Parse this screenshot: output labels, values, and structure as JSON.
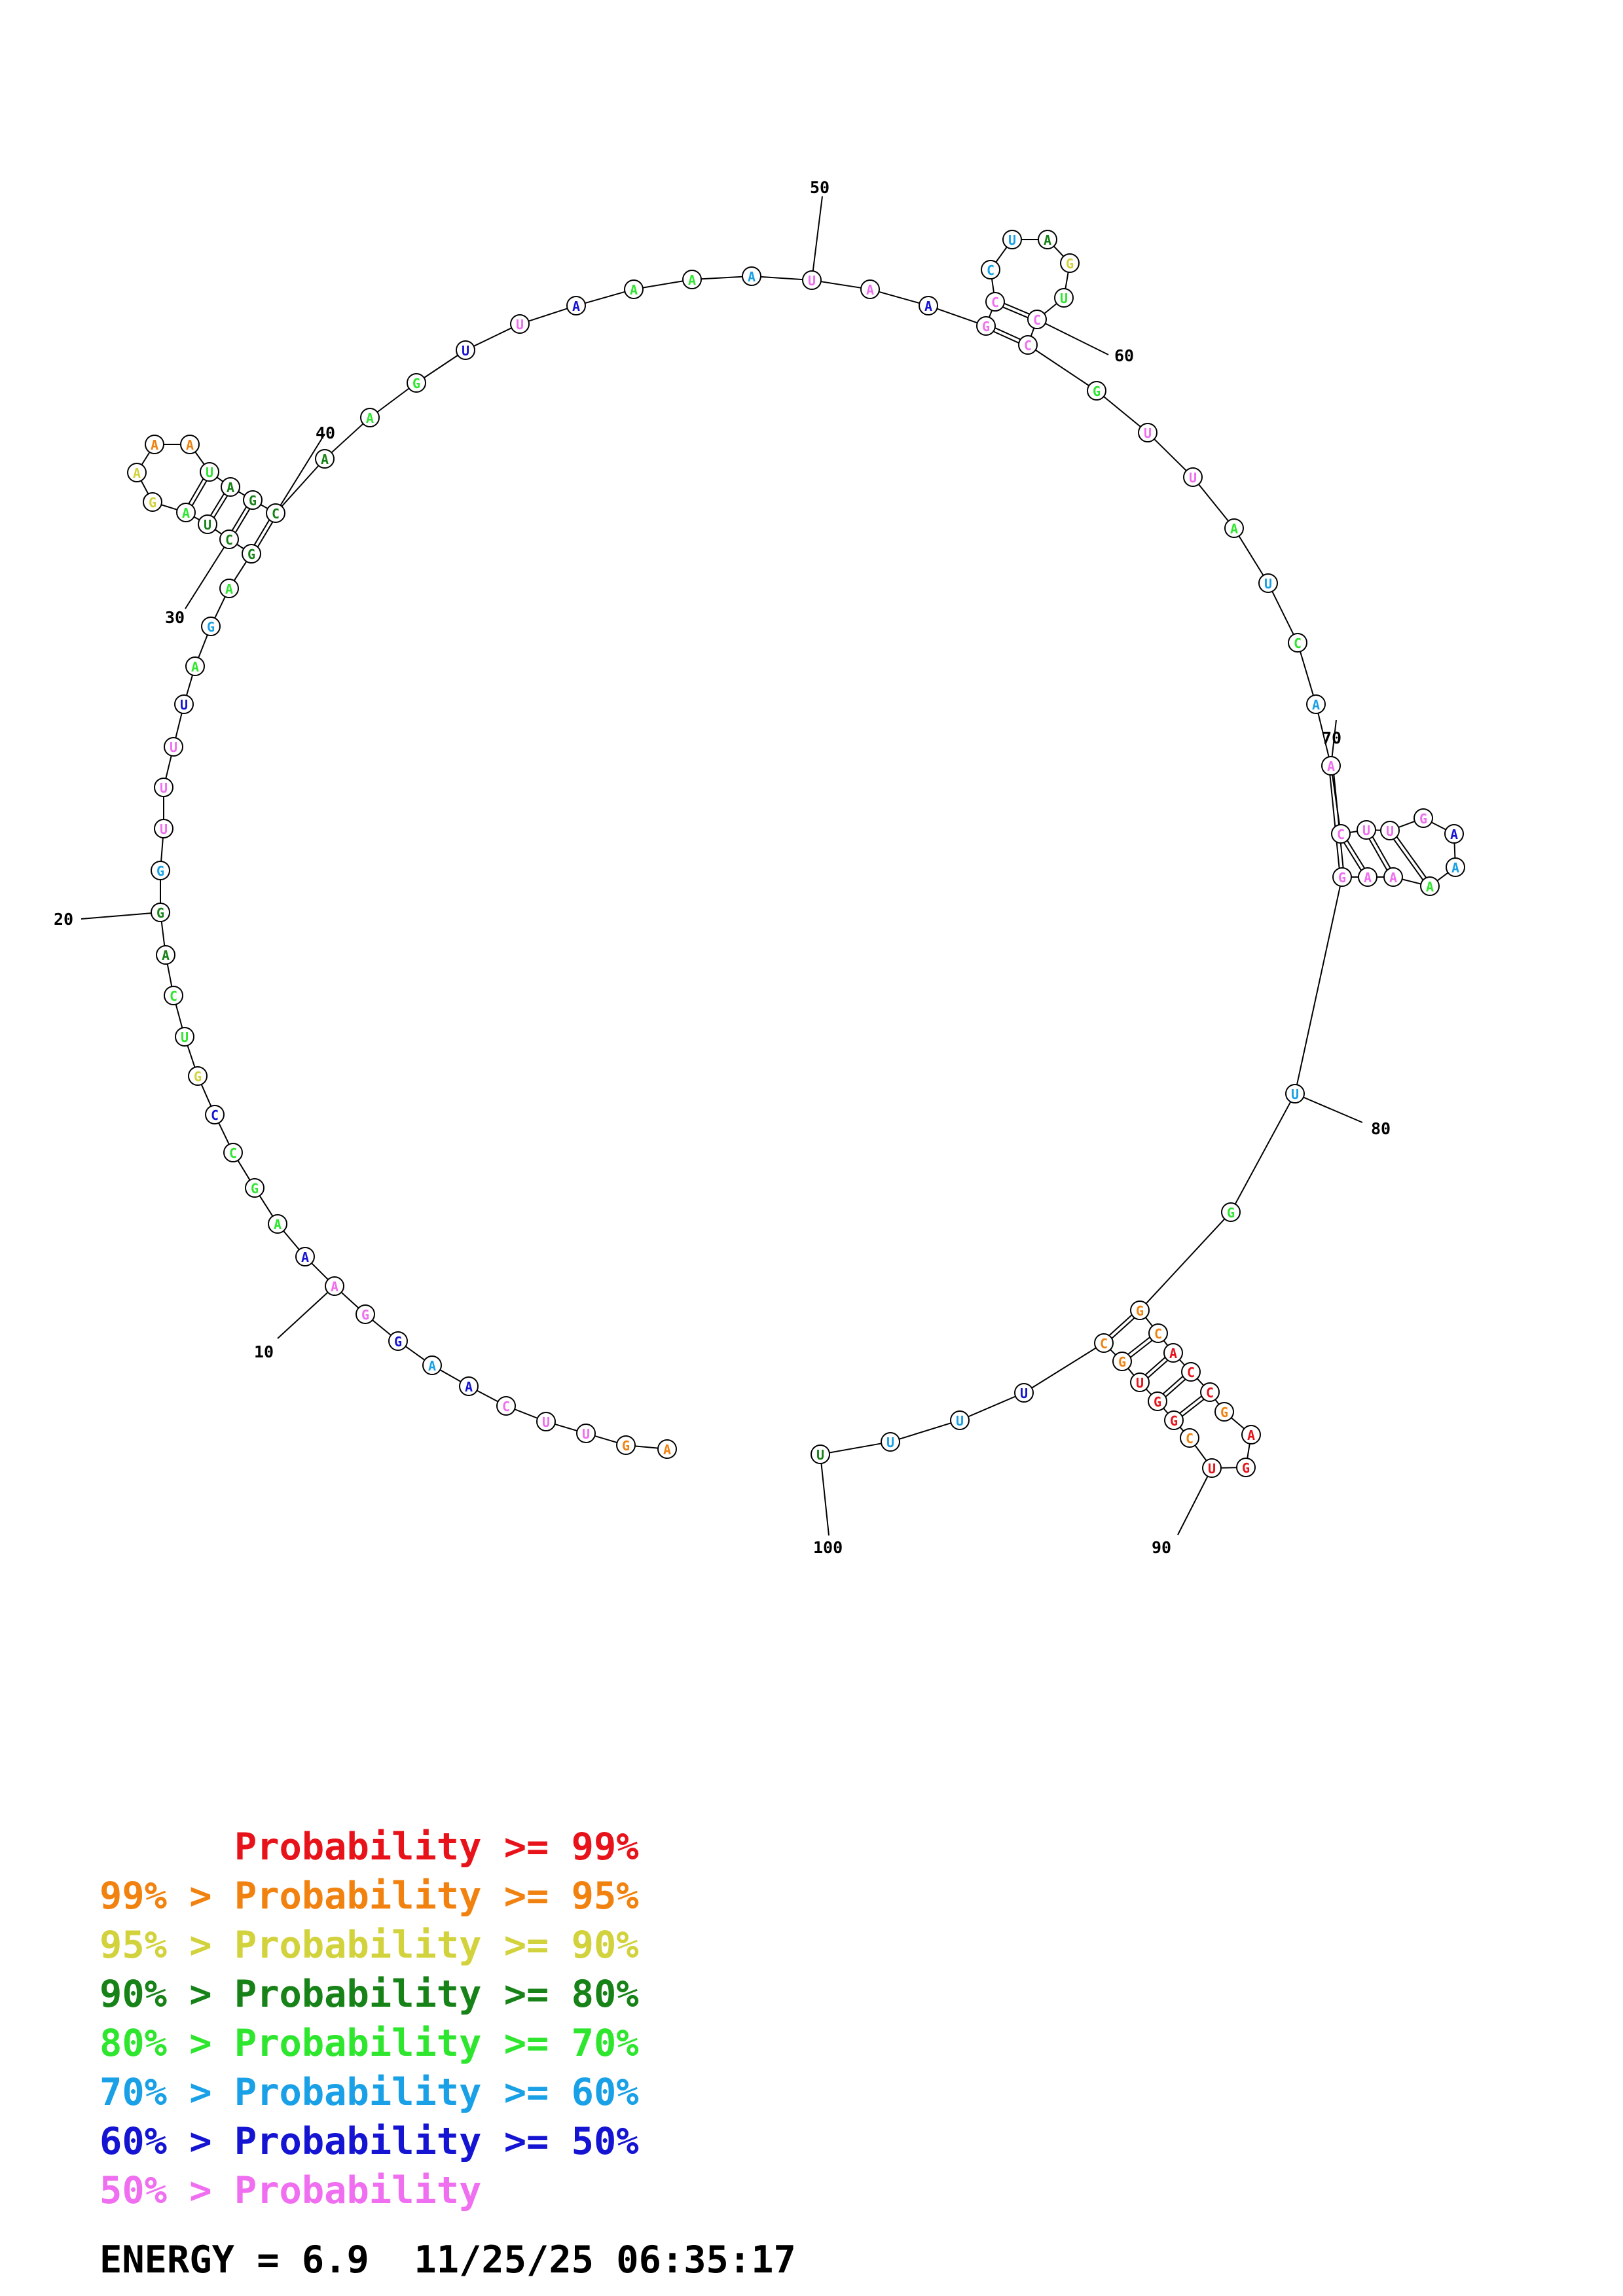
{
  "colors": {
    "red": "#e8131a",
    "orange": "#f2820f",
    "yellow": "#d2d23c",
    "darkgreen": "#178217",
    "green": "#2ee62e",
    "cyan": "#19a0e6",
    "blue": "#1414d2",
    "pink": "#f06ef0"
  },
  "sequence": [
    {
      "n": 1,
      "b": "A",
      "c": "orange"
    },
    {
      "n": 2,
      "b": "G",
      "c": "orange"
    },
    {
      "n": 3,
      "b": "U",
      "c": "pink"
    },
    {
      "n": 4,
      "b": "U",
      "c": "pink"
    },
    {
      "n": 5,
      "b": "C",
      "c": "pink"
    },
    {
      "n": 6,
      "b": "A",
      "c": "blue"
    },
    {
      "n": 7,
      "b": "A",
      "c": "cyan"
    },
    {
      "n": 8,
      "b": "G",
      "c": "blue"
    },
    {
      "n": 9,
      "b": "G",
      "c": "pink"
    },
    {
      "n": 10,
      "b": "A",
      "c": "pink"
    },
    {
      "n": 11,
      "b": "A",
      "c": "blue"
    },
    {
      "n": 12,
      "b": "A",
      "c": "green"
    },
    {
      "n": 13,
      "b": "G",
      "c": "green"
    },
    {
      "n": 14,
      "b": "C",
      "c": "green"
    },
    {
      "n": 15,
      "b": "C",
      "c": "blue"
    },
    {
      "n": 16,
      "b": "G",
      "c": "yellow"
    },
    {
      "n": 17,
      "b": "U",
      "c": "green"
    },
    {
      "n": 18,
      "b": "C",
      "c": "green"
    },
    {
      "n": 19,
      "b": "A",
      "c": "darkgreen"
    },
    {
      "n": 20,
      "b": "G",
      "c": "darkgreen"
    },
    {
      "n": 21,
      "b": "G",
      "c": "cyan"
    },
    {
      "n": 22,
      "b": "U",
      "c": "pink"
    },
    {
      "n": 23,
      "b": "U",
      "c": "pink"
    },
    {
      "n": 24,
      "b": "U",
      "c": "pink"
    },
    {
      "n": 25,
      "b": "U",
      "c": "blue"
    },
    {
      "n": 26,
      "b": "A",
      "c": "green"
    },
    {
      "n": 27,
      "b": "G",
      "c": "cyan"
    },
    {
      "n": 28,
      "b": "A",
      "c": "green"
    },
    {
      "n": 29,
      "b": "G",
      "c": "darkgreen"
    },
    {
      "n": 30,
      "b": "C",
      "c": "darkgreen"
    },
    {
      "n": 31,
      "b": "U",
      "c": "darkgreen"
    },
    {
      "n": 32,
      "b": "A",
      "c": "green"
    },
    {
      "n": 33,
      "b": "G",
      "c": "yellow"
    },
    {
      "n": 34,
      "b": "A",
      "c": "yellow"
    },
    {
      "n": 35,
      "b": "A",
      "c": "orange"
    },
    {
      "n": 36,
      "b": "A",
      "c": "orange"
    },
    {
      "n": 37,
      "b": "U",
      "c": "green"
    },
    {
      "n": 38,
      "b": "A",
      "c": "darkgreen"
    },
    {
      "n": 39,
      "b": "G",
      "c": "darkgreen"
    },
    {
      "n": 40,
      "b": "C",
      "c": "darkgreen"
    },
    {
      "n": 41,
      "b": "A",
      "c": "darkgreen"
    },
    {
      "n": 42,
      "b": "A",
      "c": "green"
    },
    {
      "n": 43,
      "b": "G",
      "c": "green"
    },
    {
      "n": 44,
      "b": "U",
      "c": "blue"
    },
    {
      "n": 45,
      "b": "U",
      "c": "pink"
    },
    {
      "n": 46,
      "b": "A",
      "c": "blue"
    },
    {
      "n": 47,
      "b": "A",
      "c": "green"
    },
    {
      "n": 48,
      "b": "A",
      "c": "green"
    },
    {
      "n": 49,
      "b": "A",
      "c": "cyan"
    },
    {
      "n": 50,
      "b": "U",
      "c": "pink"
    },
    {
      "n": 51,
      "b": "A",
      "c": "pink"
    },
    {
      "n": 52,
      "b": "A",
      "c": "blue"
    },
    {
      "n": 53,
      "b": "G",
      "c": "pink"
    },
    {
      "n": 54,
      "b": "C",
      "c": "pink"
    },
    {
      "n": 55,
      "b": "C",
      "c": "cyan"
    },
    {
      "n": 56,
      "b": "U",
      "c": "cyan"
    },
    {
      "n": 57,
      "b": "A",
      "c": "darkgreen"
    },
    {
      "n": 58,
      "b": "G",
      "c": "yellow"
    },
    {
      "n": 59,
      "b": "U",
      "c": "green"
    },
    {
      "n": 60,
      "b": "C",
      "c": "pink"
    },
    {
      "n": 61,
      "b": "C",
      "c": "pink"
    },
    {
      "n": 62,
      "b": "G",
      "c": "green"
    },
    {
      "n": 63,
      "b": "U",
      "c": "pink"
    },
    {
      "n": 64,
      "b": "U",
      "c": "pink"
    },
    {
      "n": 65,
      "b": "A",
      "c": "green"
    },
    {
      "n": 66,
      "b": "U",
      "c": "cyan"
    },
    {
      "n": 67,
      "b": "C",
      "c": "green"
    },
    {
      "n": 68,
      "b": "A",
      "c": "cyan"
    },
    {
      "n": 69,
      "b": "A",
      "c": "pink"
    },
    {
      "n": 70,
      "b": "C",
      "c": "pink"
    },
    {
      "n": 71,
      "b": "U",
      "c": "pink"
    },
    {
      "n": 72,
      "b": "U",
      "c": "pink"
    },
    {
      "n": 73,
      "b": "G",
      "c": "pink"
    },
    {
      "n": 74,
      "b": "A",
      "c": "blue"
    },
    {
      "n": 75,
      "b": "A",
      "c": "cyan"
    },
    {
      "n": 76,
      "b": "A",
      "c": "green"
    },
    {
      "n": 77,
      "b": "A",
      "c": "pink"
    },
    {
      "n": 78,
      "b": "A",
      "c": "pink"
    },
    {
      "n": 79,
      "b": "G",
      "c": "pink"
    },
    {
      "n": 80,
      "b": "U",
      "c": "cyan"
    },
    {
      "n": 81,
      "b": "G",
      "c": "green"
    },
    {
      "n": 82,
      "b": "G",
      "c": "orange"
    },
    {
      "n": 83,
      "b": "C",
      "c": "orange"
    },
    {
      "n": 84,
      "b": "A",
      "c": "red"
    },
    {
      "n": 85,
      "b": "C",
      "c": "red"
    },
    {
      "n": 86,
      "b": "C",
      "c": "red"
    },
    {
      "n": 87,
      "b": "G",
      "c": "orange"
    },
    {
      "n": 88,
      "b": "A",
      "c": "red"
    },
    {
      "n": 89,
      "b": "G",
      "c": "red"
    },
    {
      "n": 90,
      "b": "U",
      "c": "red"
    },
    {
      "n": 91,
      "b": "C",
      "c": "orange"
    },
    {
      "n": 92,
      "b": "G",
      "c": "red"
    },
    {
      "n": 93,
      "b": "G",
      "c": "red"
    },
    {
      "n": 94,
      "b": "U",
      "c": "red"
    },
    {
      "n": 95,
      "b": "G",
      "c": "orange"
    },
    {
      "n": 96,
      "b": "C",
      "c": "orange"
    },
    {
      "n": 97,
      "b": "U",
      "c": "blue"
    },
    {
      "n": 98,
      "b": "U",
      "c": "cyan"
    },
    {
      "n": 99,
      "b": "U",
      "c": "cyan"
    },
    {
      "n": 100,
      "b": "U",
      "c": "darkgreen"
    }
  ],
  "pairs": [
    [
      29,
      40
    ],
    [
      30,
      39
    ],
    [
      31,
      38
    ],
    [
      32,
      37
    ],
    [
      53,
      61
    ],
    [
      54,
      60
    ],
    [
      69,
      79
    ],
    [
      70,
      78
    ],
    [
      71,
      77
    ],
    [
      72,
      76
    ],
    [
      82,
      96
    ],
    [
      83,
      95
    ],
    [
      84,
      94
    ],
    [
      85,
      93
    ],
    [
      86,
      92
    ]
  ],
  "tick_labels": [
    "10",
    "20",
    "30",
    "40",
    "50",
    "60",
    "70",
    "80",
    "90",
    "100"
  ],
  "legend": [
    {
      "prefix": "",
      "label": "Probability >= 99%",
      "color": "red"
    },
    {
      "prefix": "99% > ",
      "label": "Probability >= 95%",
      "color": "orange"
    },
    {
      "prefix": "95% > ",
      "label": "Probability >= 90%",
      "color": "yellow"
    },
    {
      "prefix": "90% > ",
      "label": "Probability >= 80%",
      "color": "darkgreen"
    },
    {
      "prefix": "80% > ",
      "label": "Probability >= 70%",
      "color": "green"
    },
    {
      "prefix": "70% > ",
      "label": "Probability >= 60%",
      "color": "cyan"
    },
    {
      "prefix": "60% > ",
      "label": "Probability >= 50%",
      "color": "blue"
    },
    {
      "prefix": "50% > ",
      "label": "Probability",
      "color": "pink"
    }
  ],
  "energy": "ENERGY = 6.9  11/25/25 06:35:17"
}
